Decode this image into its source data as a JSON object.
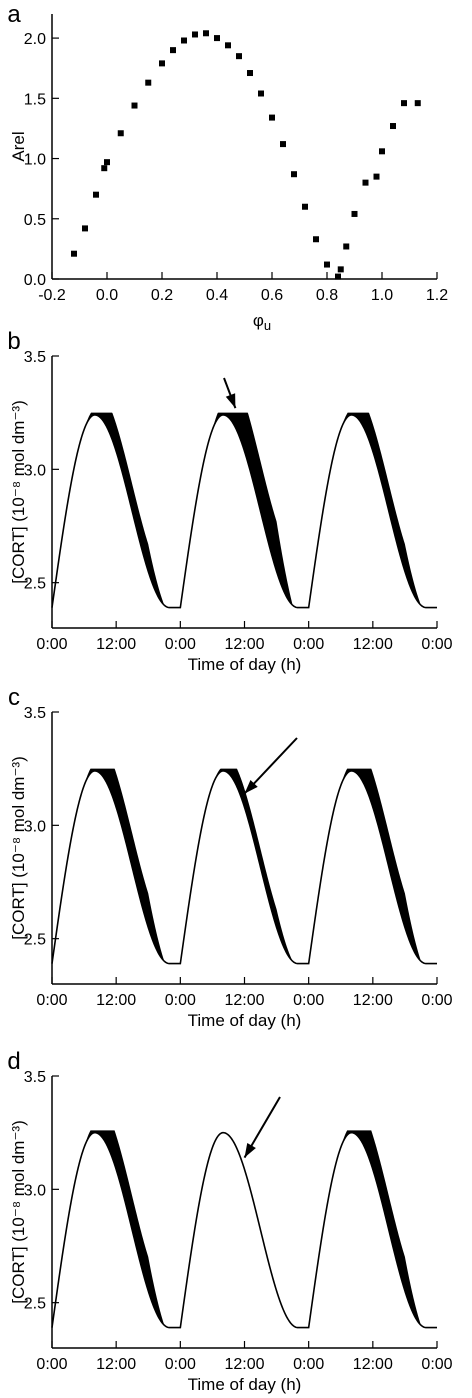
{
  "chart_data": [
    {
      "panel": "a",
      "type": "scatter",
      "xlabel": "φu",
      "ylabel": "Arel",
      "xlim": [
        -0.2,
        1.2
      ],
      "ylim": [
        0.0,
        2.2
      ],
      "xticks": [
        "-0.2",
        "0.0",
        "0.2",
        "0.4",
        "0.6",
        "0.8",
        "1.0",
        "1.2"
      ],
      "xtick_values": [
        -0.2,
        0.0,
        0.2,
        0.4,
        0.6,
        0.8,
        1.0,
        1.2
      ],
      "yticks": [
        "0.0",
        "0.5",
        "1.0",
        "1.5",
        "2.0"
      ],
      "ytick_values": [
        0.0,
        0.5,
        1.0,
        1.5,
        2.0
      ],
      "x": [
        -0.12,
        -0.08,
        -0.04,
        -0.01,
        0.0,
        0.05,
        0.1,
        0.15,
        0.2,
        0.24,
        0.28,
        0.32,
        0.36,
        0.4,
        0.44,
        0.48,
        0.52,
        0.56,
        0.6,
        0.64,
        0.68,
        0.72,
        0.76,
        0.8,
        0.84,
        0.85,
        0.87,
        0.9,
        0.94,
        0.98,
        1.0,
        1.04,
        1.08,
        1.13
      ],
      "y": [
        0.21,
        0.42,
        0.7,
        0.92,
        0.97,
        1.21,
        1.44,
        1.63,
        1.79,
        1.9,
        1.98,
        2.03,
        2.04,
        2.0,
        1.94,
        1.85,
        1.71,
        1.54,
        1.34,
        1.12,
        0.87,
        0.6,
        0.33,
        0.12,
        0.02,
        0.08,
        0.27,
        0.54,
        0.8,
        0.85,
        1.06,
        1.27,
        1.46,
        1.46
      ]
    },
    {
      "panel": "b",
      "type": "line",
      "xlabel": "Time of day (h)",
      "ylabel": "[CORT] (10⁻⁸ mol dm⁻³)",
      "ylim": [
        2.3,
        3.5
      ],
      "xticks": [
        "0:00",
        "12:00",
        "0:00",
        "12:00",
        "0:00",
        "12:00",
        "0:00"
      ],
      "xtick_hours": [
        0,
        12,
        24,
        36,
        48,
        60,
        72
      ],
      "yticks": [
        "2.5",
        "3.0",
        "3.5"
      ],
      "ytick_values": [
        2.5,
        3.0,
        3.5
      ],
      "baseline_min": 2.39,
      "peak": 3.24,
      "peak_hours": [
        8,
        32,
        56
      ],
      "band_width": [
        0.12,
        0.22,
        0.12
      ],
      "annotations": [
        "arrow"
      ]
    },
    {
      "panel": "c",
      "type": "line",
      "xlabel": "Time of day (h)",
      "ylabel": "[CORT] (10⁻⁸ mol dm⁻³)",
      "ylim": [
        2.3,
        3.5
      ],
      "xticks": [
        "0:00",
        "12:00",
        "0:00",
        "12:00",
        "0:00",
        "12:00",
        "0:00"
      ],
      "xtick_hours": [
        0,
        12,
        24,
        36,
        48,
        60,
        72
      ],
      "yticks": [
        "2.5",
        "3.0",
        "3.5"
      ],
      "ytick_values": [
        2.5,
        3.0,
        3.5
      ],
      "baseline_min": 2.39,
      "peak": 3.24,
      "peak_hours": [
        8,
        32,
        56
      ],
      "band_width": [
        0.15,
        0.08,
        0.15
      ],
      "annotations": [
        "arrow"
      ]
    },
    {
      "panel": "d",
      "type": "line",
      "xlabel": "Time of day (h)",
      "ylabel": "[CORT] (10⁻⁸ mol dm⁻³)",
      "ylim": [
        2.3,
        3.5
      ],
      "xticks": [
        "0:00",
        "12:00",
        "0:00",
        "12:00",
        "0:00",
        "12:00",
        "0:00"
      ],
      "xtick_hours": [
        0,
        12,
        24,
        36,
        48,
        60,
        72
      ],
      "yticks": [
        "2.5",
        "3.0",
        "3.5"
      ],
      "ytick_values": [
        2.5,
        3.0,
        3.5
      ],
      "baseline_min": 2.39,
      "peak": 3.25,
      "peak_hours": [
        8,
        32,
        56
      ],
      "band_width": [
        0.15,
        0.0,
        0.15
      ],
      "annotations": [
        "arrow"
      ]
    }
  ],
  "colors": {
    "ink": "#000000",
    "background": "#ffffff"
  }
}
